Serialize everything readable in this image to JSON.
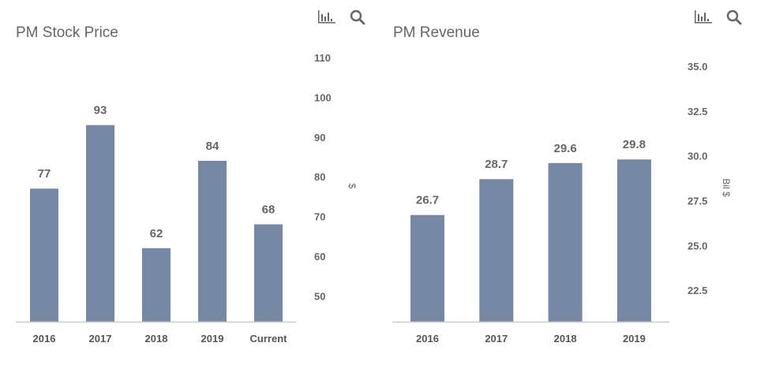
{
  "chart_data": [
    {
      "type": "bar",
      "title": "PM Stock Price",
      "ylabel": "$",
      "categories": [
        "2016",
        "2017",
        "2018",
        "2019",
        "Current"
      ],
      "values": [
        77,
        93,
        62,
        84,
        68
      ],
      "data_labels": [
        "77",
        "93",
        "62",
        "84",
        "68"
      ],
      "yticks": [
        "110",
        "100",
        "90",
        "80",
        "70",
        "60",
        "50"
      ],
      "ytick_values": [
        110,
        100,
        90,
        80,
        70,
        60,
        50
      ],
      "ylim": [
        43.5,
        110
      ],
      "grid": false,
      "bar_color": "#7788a5",
      "axis_position": "right"
    },
    {
      "type": "bar",
      "title": "PM Revenue",
      "ylabel": "Bil $",
      "categories": [
        "2016",
        "2017",
        "2018",
        "2019"
      ],
      "values": [
        26.7,
        28.7,
        29.6,
        29.8
      ],
      "data_labels": [
        "26.7",
        "28.7",
        "29.6",
        "29.8"
      ],
      "yticks": [
        "35.0",
        "32.5",
        "30.0",
        "27.5",
        "25.0",
        "22.5"
      ],
      "ytick_values": [
        35,
        32.5,
        30,
        27.5,
        25,
        22.5
      ],
      "ylim": [
        20.75,
        35
      ],
      "grid": false,
      "bar_color": "#7788a5",
      "axis_position": "right"
    }
  ],
  "toolbar": {
    "icons": [
      "bar-chart-icon",
      "search-icon"
    ]
  }
}
